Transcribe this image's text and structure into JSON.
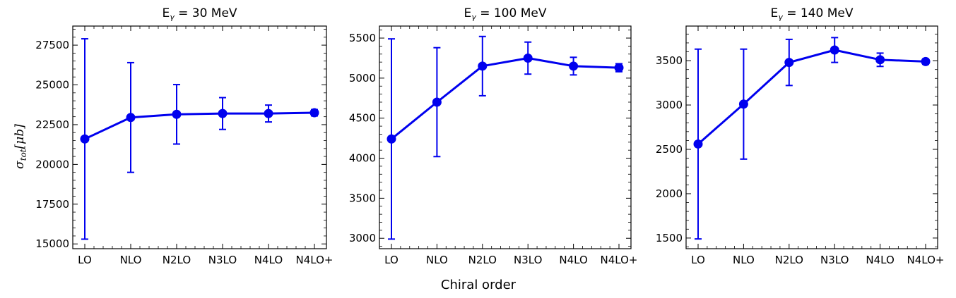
{
  "figure": {
    "xlabel": "Chiral order",
    "ylabel": "σtot[μb]"
  },
  "chart_data": [
    {
      "type": "line",
      "title": "Eγ = 30 MeV",
      "categories": [
        "LO",
        "NLO",
        "N2LO",
        "N3LO",
        "N4LO",
        "N4LO+"
      ],
      "values": [
        21600,
        22950,
        23150,
        23200,
        23200,
        23250
      ],
      "errors": [
        6300,
        3450,
        1870,
        1000,
        530,
        200
      ],
      "ylim": [
        14700,
        28700
      ],
      "yticks": [
        15000,
        17500,
        20000,
        22500,
        25000,
        27500
      ],
      "color": "#0000ee"
    },
    {
      "type": "line",
      "title": "Eγ = 100 MeV",
      "categories": [
        "LO",
        "NLO",
        "N2LO",
        "N3LO",
        "N4LO",
        "N4LO+"
      ],
      "values": [
        4240,
        4700,
        5150,
        5250,
        5150,
        5130
      ],
      "errors": [
        1250,
        680,
        370,
        200,
        110,
        50
      ],
      "ylim": [
        2870,
        5650
      ],
      "yticks": [
        3000,
        3500,
        4000,
        4500,
        5000,
        5500
      ],
      "color": "#0000ee"
    },
    {
      "type": "line",
      "title": "Eγ = 140 MeV",
      "categories": [
        "LO",
        "NLO",
        "N2LO",
        "N3LO",
        "N4LO",
        "N4LO+"
      ],
      "values": [
        2560,
        3010,
        3480,
        3620,
        3510,
        3490
      ],
      "errors": [
        1070,
        620,
        260,
        140,
        75,
        30
      ],
      "ylim": [
        1380,
        3890
      ],
      "yticks": [
        1500,
        2000,
        2500,
        3000,
        3500
      ],
      "color": "#0000ee"
    }
  ]
}
